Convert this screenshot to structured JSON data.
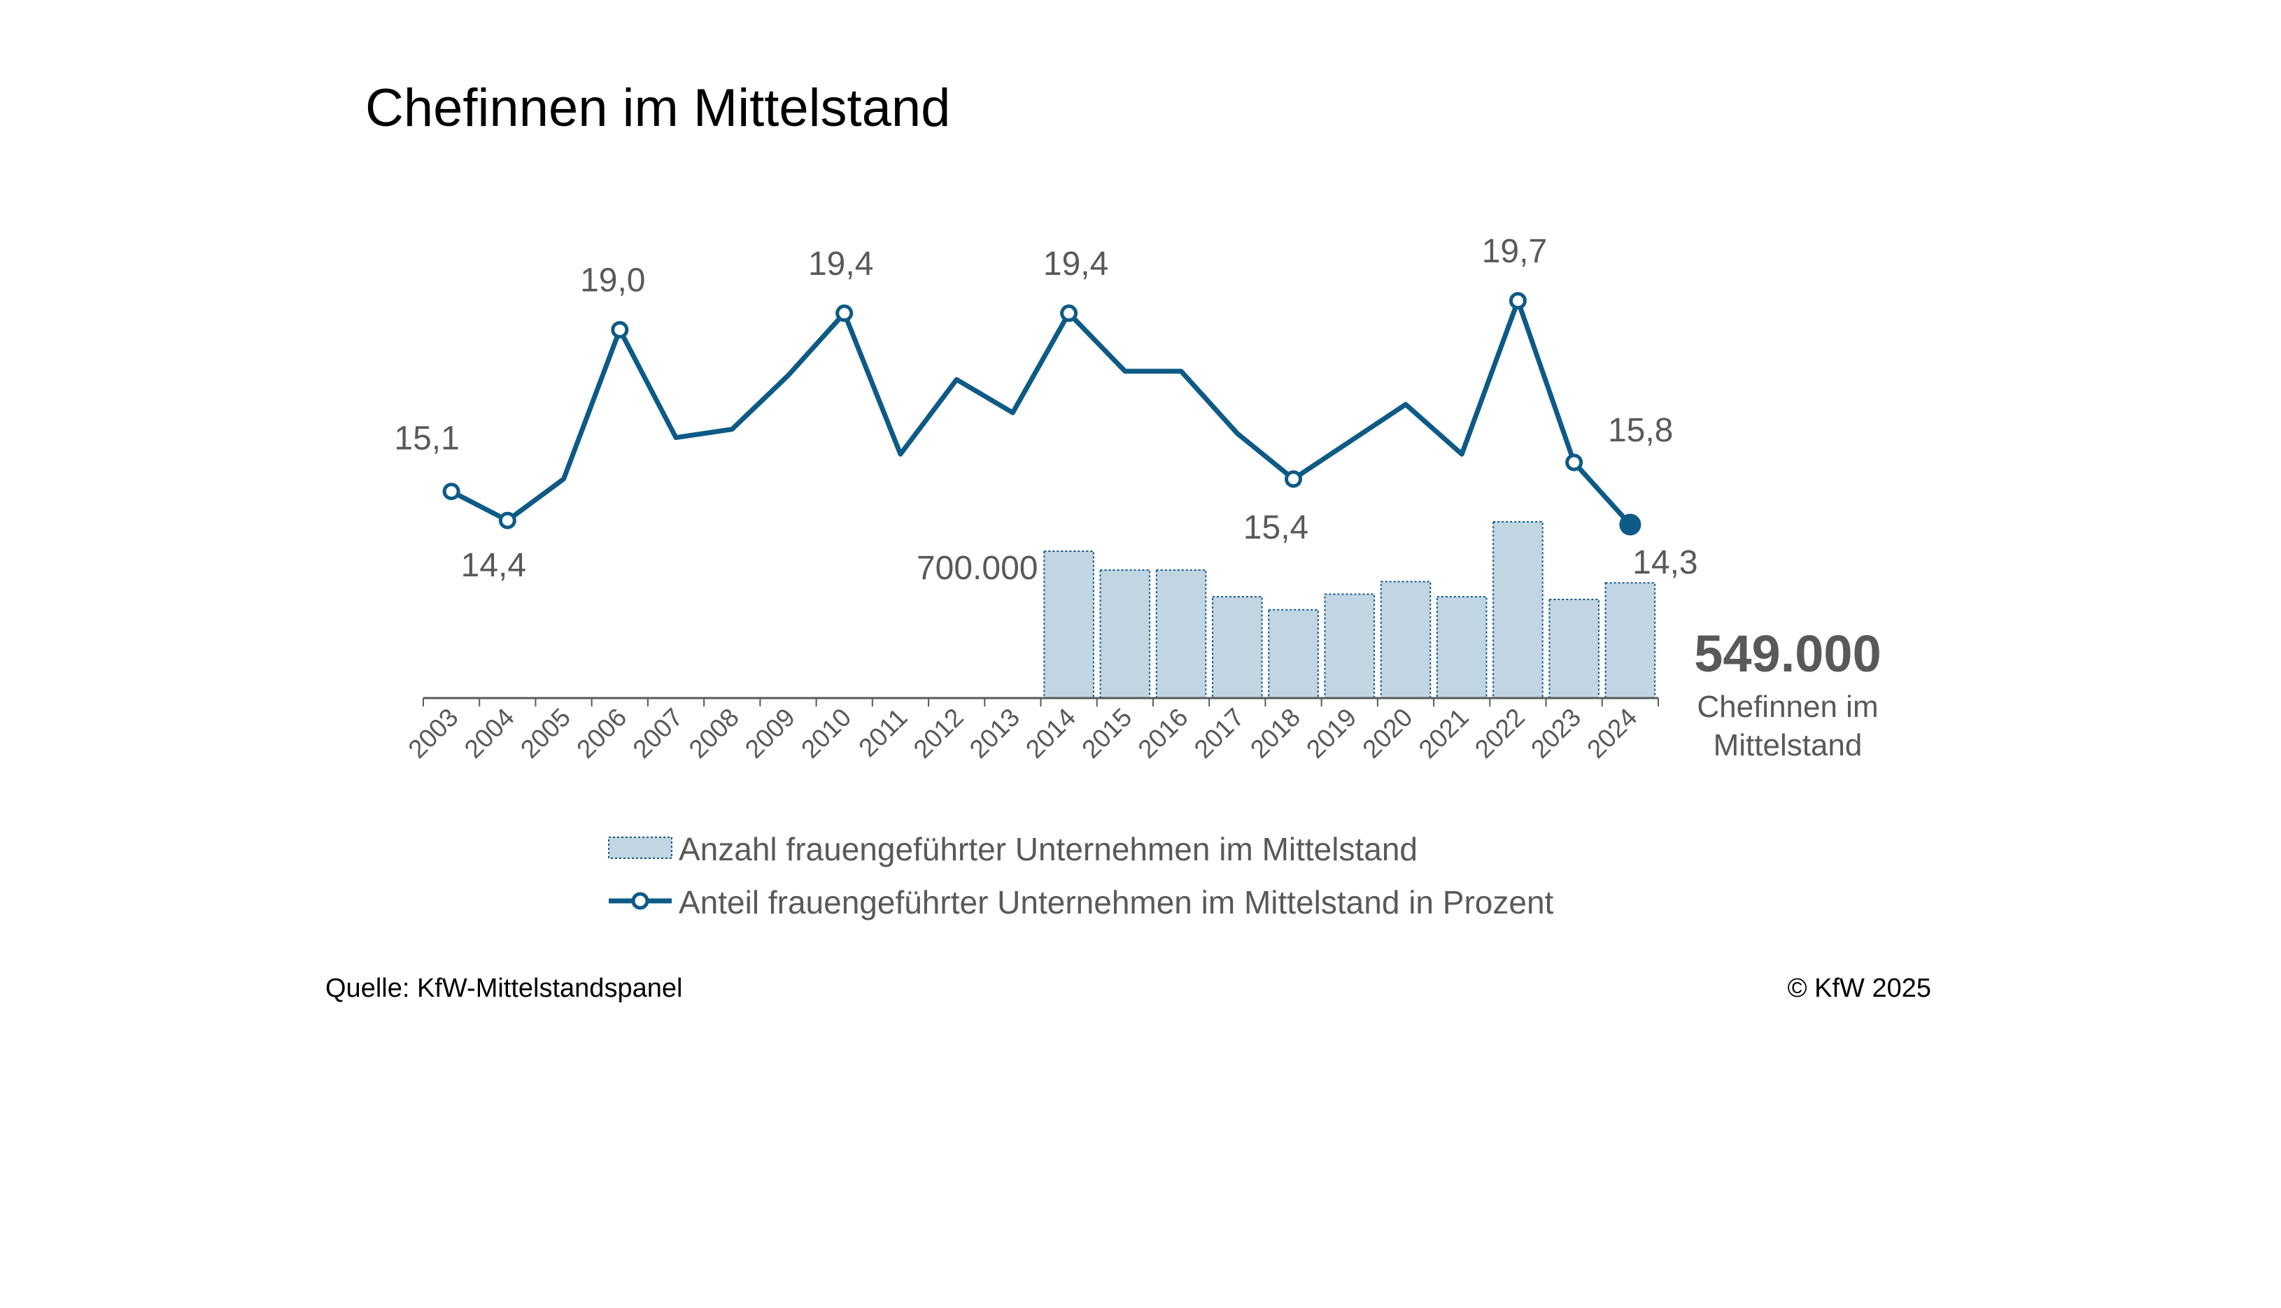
{
  "title": "Chefinnen im Mittelstand",
  "source": "Quelle: KfW-Mittelstandspanel",
  "copyright": "© KfW 2025",
  "callout": {
    "value": "549.000",
    "line1": "Chefinnen im",
    "line2": "Mittelstand"
  },
  "colors": {
    "line": "#0d5a86",
    "bar_fill": "#c2d5e3",
    "bar_stroke": "#0d5a86",
    "axis": "#595959",
    "text": "#595959"
  },
  "legend": [
    {
      "kind": "bar",
      "label": "Anzahl frauengeführter Unternehmen im Mittelstand"
    },
    {
      "kind": "line",
      "label": "Anteil frauengeführter Unternehmen im Mittelstand in Prozent"
    }
  ],
  "chart_data": {
    "type": "bar+line",
    "categories": [
      "2003",
      "2004",
      "2005",
      "2006",
      "2007",
      "2008",
      "2009",
      "2010",
      "2011",
      "2012",
      "2013",
      "2014",
      "2015",
      "2016",
      "2017",
      "2018",
      "2019",
      "2020",
      "2021",
      "2022",
      "2023",
      "2024"
    ],
    "series": [
      {
        "name": "Anzahl frauengeführter Unternehmen im Mittelstand",
        "type": "bar",
        "values": [
          null,
          null,
          null,
          null,
          null,
          null,
          null,
          null,
          null,
          null,
          null,
          700000,
          610000,
          610000,
          483000,
          421000,
          495000,
          555000,
          483000,
          840000,
          470000,
          549000
        ]
      },
      {
        "name": "Anteil frauengeführter Unternehmen im Mittelstand in Prozent",
        "type": "line",
        "values": [
          15.1,
          14.4,
          15.4,
          19.0,
          16.4,
          16.6,
          17.9,
          19.4,
          16.0,
          17.8,
          17.0,
          19.4,
          18.0,
          18.0,
          16.5,
          15.4,
          16.3,
          17.2,
          16.0,
          19.7,
          15.8,
          14.3
        ]
      }
    ],
    "bar_ylim": [
      0,
      1400000
    ],
    "line_ylim": [
      10,
      21
    ],
    "data_labels": [
      {
        "series": 1,
        "category": "2003",
        "text": "15,1"
      },
      {
        "series": 1,
        "category": "2004",
        "text": "14,4"
      },
      {
        "series": 1,
        "category": "2006",
        "text": "19,0"
      },
      {
        "series": 1,
        "category": "2010",
        "text": "19,4"
      },
      {
        "series": 1,
        "category": "2014",
        "text": "19,4"
      },
      {
        "series": 1,
        "category": "2018",
        "text": "15,4"
      },
      {
        "series": 1,
        "category": "2022",
        "text": "19,7"
      },
      {
        "series": 1,
        "category": "2023",
        "text": "15,8"
      },
      {
        "series": 1,
        "category": "2024",
        "text": "14,3"
      },
      {
        "series": 0,
        "category": "2014",
        "text": "700.000"
      }
    ],
    "markers": [
      "2003",
      "2004",
      "2006",
      "2010",
      "2014",
      "2018",
      "2022",
      "2023",
      "2024"
    ],
    "highlight": "2024",
    "grid": false,
    "legend_position": "bottom"
  }
}
